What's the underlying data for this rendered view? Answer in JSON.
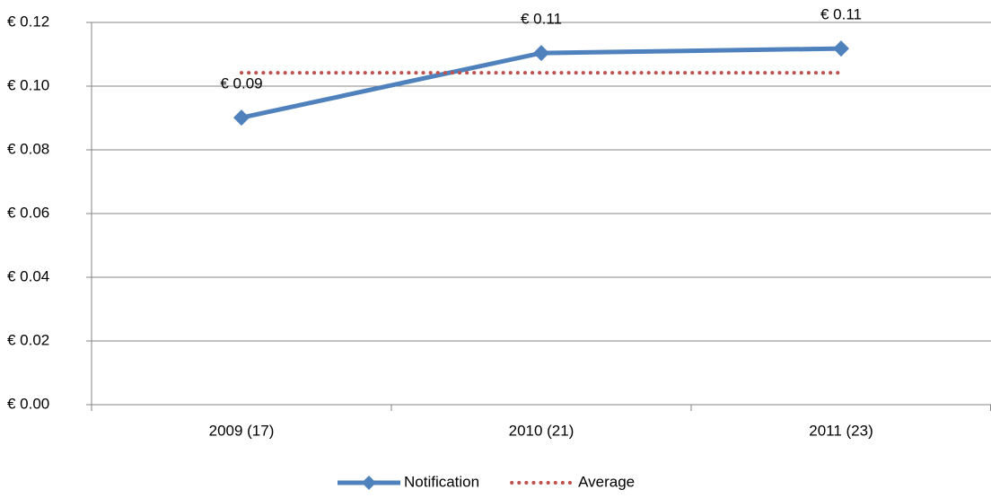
{
  "chart_data": {
    "type": "line",
    "categories": [
      "2009 (17)",
      "2010 (21)",
      "2011 (23)"
    ],
    "series": [
      {
        "name": "Notification",
        "color": "#4f81bd",
        "values": [
          0.0901,
          0.1104,
          0.1118
        ],
        "value_labels": [
          "€ 0.09",
          "€ 0.11",
          "€ 0.11"
        ],
        "marker": "diamond"
      },
      {
        "name": "Average",
        "color": "#c0504d",
        "values": [
          0.1042,
          0.1042,
          0.1042
        ],
        "dash": "dotted"
      }
    ],
    "ylim": [
      0,
      0.12
    ],
    "yticks": [
      {
        "value": 0,
        "label": "€ 0.00"
      },
      {
        "value": 0.02,
        "label": "€ 0.02"
      },
      {
        "value": 0.04,
        "label": "€ 0.04"
      },
      {
        "value": 0.06,
        "label": "€ 0.06"
      },
      {
        "value": 0.08,
        "label": "€ 0.08"
      },
      {
        "value": 0.1,
        "label": "€ 0.10"
      },
      {
        "value": 0.12,
        "label": "€ 0.12"
      }
    ],
    "grid": true,
    "legend": "bottom"
  }
}
